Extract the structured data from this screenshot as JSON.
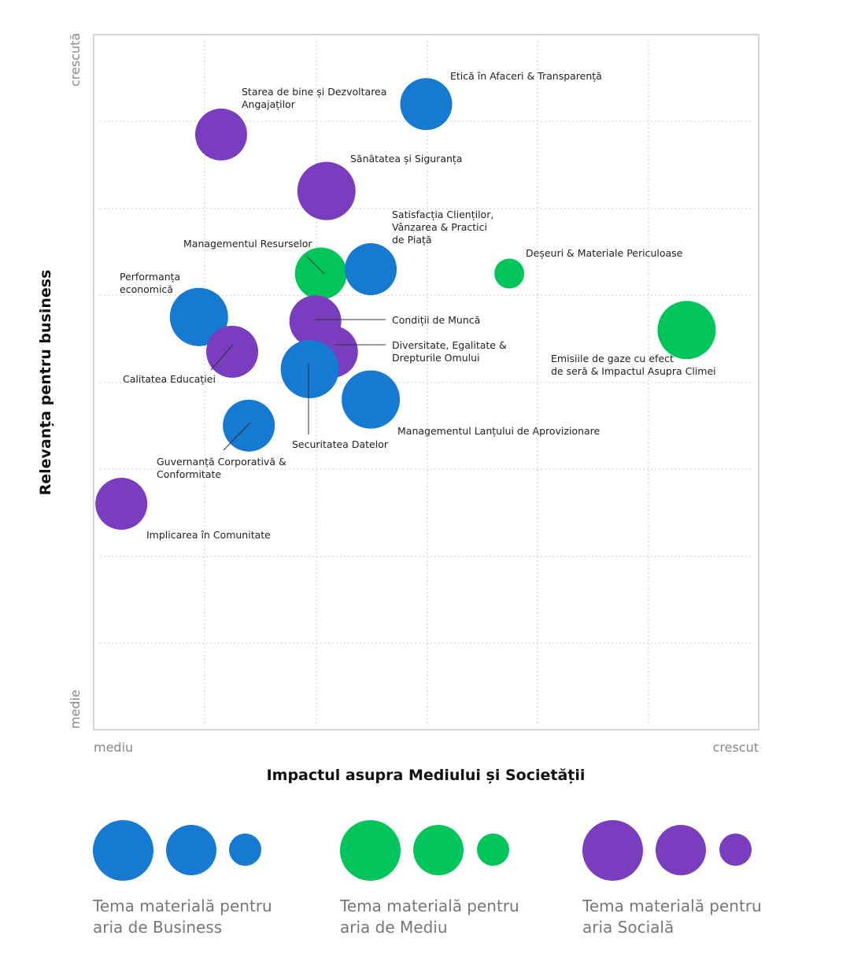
{
  "chart_data": {
    "type": "scatter",
    "xlabel": "Impactul asupra Mediului și Societății",
    "ylabel": "Relevanța pentru business",
    "x_min_label": "mediu",
    "x_max_label": "crescut",
    "y_min_label": "medie",
    "y_max_label": "crescută",
    "xlim": [
      0,
      6
    ],
    "ylim": [
      0,
      8
    ],
    "grid": true,
    "points": [
      {
        "label": "Etică în Afaceri & Transparență",
        "x": 3.0,
        "y": 7.2,
        "size": "medium",
        "category": "business"
      },
      {
        "label": "Starea de bine și Dezvoltarea Angajaților",
        "x": 1.15,
        "y": 6.85,
        "size": "medium",
        "category": "social"
      },
      {
        "label": "Sănătatea și Siguranța",
        "x": 2.1,
        "y": 6.2,
        "size": "large",
        "category": "social"
      },
      {
        "label": "Satisfacția Clienților, Vânzarea & Practici de Piață",
        "x": 2.5,
        "y": 5.3,
        "size": "medium",
        "category": "business"
      },
      {
        "label": "Managementul Resurselor",
        "x": 2.05,
        "y": 5.25,
        "size": "medium",
        "category": "environment"
      },
      {
        "label": "Deșeuri & Materiale Periculoase",
        "x": 3.75,
        "y": 5.25,
        "size": "small",
        "category": "environment"
      },
      {
        "label": "Performanța economică",
        "x": 0.95,
        "y": 4.75,
        "size": "large",
        "category": "business"
      },
      {
        "label": "Condiții de Muncă",
        "x": 2.0,
        "y": 4.7,
        "size": "medium",
        "category": "social"
      },
      {
        "label": "Calitatea Educației",
        "x": 1.25,
        "y": 4.35,
        "size": "medium",
        "category": "social"
      },
      {
        "label": "Diversitate, Egalitate & Drepturile Omului",
        "x": 2.15,
        "y": 4.35,
        "size": "medium",
        "category": "social"
      },
      {
        "label": "Securitatea Datelor",
        "x": 1.95,
        "y": 4.15,
        "size": "large",
        "category": "business"
      },
      {
        "label": "Emisiile de gaze cu efect de seră & Impactul Asupra Climei",
        "x": 5.35,
        "y": 4.6,
        "size": "large",
        "category": "environment"
      },
      {
        "label": "Managementul Lanțului de Aprovizionare",
        "x": 2.5,
        "y": 3.8,
        "size": "large",
        "category": "business"
      },
      {
        "label": "Guvernanță Corporativă & Conformitate",
        "x": 1.4,
        "y": 3.5,
        "size": "medium",
        "category": "business"
      },
      {
        "label": "Implicarea în Comunitate",
        "x": 0.25,
        "y": 2.6,
        "size": "medium",
        "category": "social"
      }
    ]
  },
  "colors": {
    "business": "#1679d2",
    "environment": "#00c55a",
    "social": "#7b3dbf",
    "grid": "#c8c8c8",
    "frame": "#c8c8c8"
  },
  "legend": [
    {
      "key": "business",
      "text": "Tema materială pentru aria de Business"
    },
    {
      "key": "environment",
      "text": "Tema materială pentru aria de Mediu"
    },
    {
      "key": "social",
      "text": "Tema materială pentru aria Socială"
    }
  ]
}
